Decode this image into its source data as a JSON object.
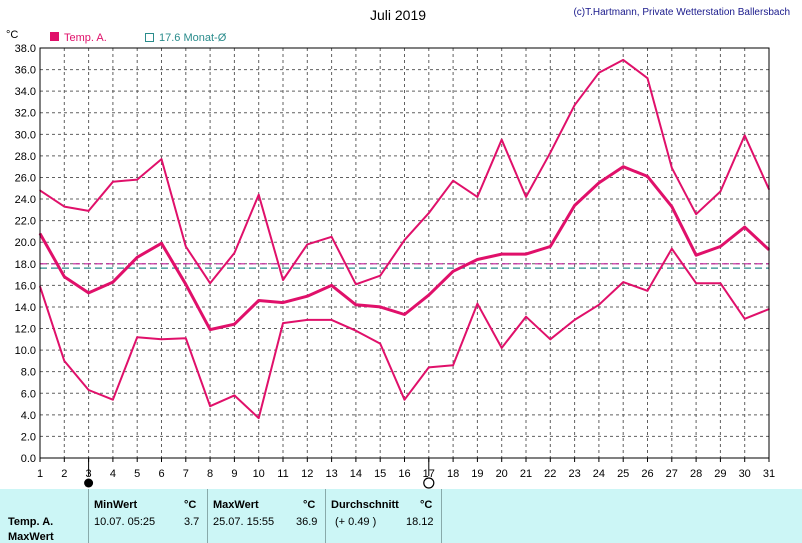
{
  "header": {
    "title": "Juli 2019",
    "credit": "(c)T.Hartmann, Private Wetterstation Ballersbach",
    "unit": "°C"
  },
  "legend": {
    "temp_label": "Temp. A.",
    "avg_label": "17.6 Monat-Ø"
  },
  "colors": {
    "series": "#e0106a",
    "monthly_avg": "#2a8c8c",
    "longterm_avg": "#c0209a",
    "grid": "#606060"
  },
  "chart_data": {
    "type": "line",
    "title": "Juli 2019",
    "ylabel": "°C",
    "ylim": [
      0,
      38
    ],
    "ytick_step": 2,
    "grid": true,
    "legend_position": "top-left",
    "x": [
      1,
      2,
      3,
      4,
      5,
      6,
      7,
      8,
      9,
      10,
      11,
      12,
      13,
      14,
      15,
      16,
      17,
      18,
      19,
      20,
      21,
      22,
      23,
      24,
      25,
      26,
      27,
      28,
      29,
      30,
      31
    ],
    "series": [
      {
        "role": "max",
        "values": [
          24.8,
          23.3,
          22.9,
          25.6,
          25.8,
          27.7,
          19.6,
          16.2,
          19.0,
          24.4,
          16.5,
          19.8,
          20.5,
          16.1,
          16.9,
          20.2,
          22.7,
          25.7,
          24.2,
          29.5,
          24.2,
          28.3,
          32.7,
          35.7,
          36.9,
          35.2,
          26.9,
          22.6,
          24.7,
          29.9,
          24.9
        ]
      },
      {
        "name": "Temp. A.",
        "role": "mean",
        "values": [
          20.8,
          16.8,
          15.3,
          16.3,
          18.6,
          19.9,
          16.1,
          11.9,
          12.4,
          14.6,
          14.4,
          15.0,
          16.0,
          14.2,
          14.0,
          13.3,
          15.1,
          17.3,
          18.4,
          18.9,
          18.9,
          19.6,
          23.4,
          25.5,
          27.0,
          26.1,
          23.3,
          18.8,
          19.6,
          21.4,
          19.3
        ]
      },
      {
        "role": "min",
        "values": [
          15.9,
          9.0,
          6.3,
          5.4,
          11.2,
          11.0,
          11.1,
          4.8,
          5.8,
          3.7,
          12.5,
          12.8,
          12.8,
          11.8,
          10.6,
          5.4,
          8.4,
          8.6,
          14.3,
          10.2,
          13.1,
          11.0,
          12.8,
          14.2,
          16.3,
          15.5,
          19.4,
          16.2,
          16.2,
          12.9,
          13.8
        ]
      }
    ],
    "reference_lines": [
      {
        "name": "17.6 Monat-Ø",
        "value": 17.6,
        "style": "dashed"
      },
      {
        "value": 18.0,
        "style": "dashed"
      }
    ],
    "markers": [
      {
        "day": 3,
        "symbol": "filled-circle"
      },
      {
        "day": 17,
        "symbol": "open-circle"
      }
    ]
  },
  "footer": {
    "row_label_1": "Temp. A.",
    "row_label_2": "MaxWert",
    "min_header": "MinWert",
    "min_unit": "°C",
    "min_time": "10.07.  05:25",
    "min_value": "3.7",
    "max_header": "MaxWert",
    "max_unit": "°C",
    "max_time": "25.07.  15:55",
    "max_value": "36.9",
    "avg_header": "Durchschnitt",
    "avg_unit": "°C",
    "avg_delta": "(+ 0.49 )",
    "avg_value": "18.12"
  }
}
